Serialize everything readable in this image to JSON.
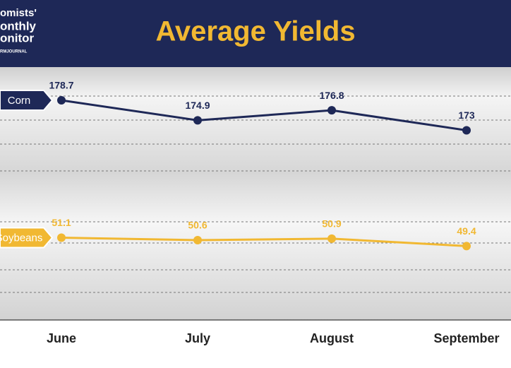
{
  "chart_data": {
    "type": "line",
    "title": "Average Yields",
    "logo": [
      "omists'",
      "onthly",
      "onitor",
      "RMJOURNAL"
    ],
    "categories": [
      "June",
      "July",
      "August",
      "September"
    ],
    "series": [
      {
        "name": "Corn",
        "color": "#1e2857",
        "values": [
          178.7,
          174.9,
          176.8,
          173
        ]
      },
      {
        "name": "Soybeans",
        "color": "#f1b832",
        "values": [
          51.1,
          50.6,
          50.9,
          49.4
        ],
        "axis": "y2"
      }
    ],
    "ylim": [
      137,
      185
    ],
    "y2lim": [
      34.5,
      85.5
    ]
  }
}
